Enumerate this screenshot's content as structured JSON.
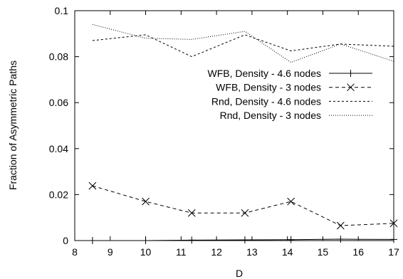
{
  "chart_data": {
    "type": "line",
    "xlabel": "D",
    "ylabel": "Fraction of Asymmetric Paths",
    "xlim": [
      8,
      17
    ],
    "ylim": [
      0,
      0.1
    ],
    "xticks": [
      8,
      9,
      10,
      11,
      12,
      13,
      14,
      15,
      16,
      17
    ],
    "yticks": [
      0,
      0.02,
      0.04,
      0.06,
      0.08,
      0.1
    ],
    "ytick_labels": [
      "0",
      "0.02",
      "0.04",
      "0.06",
      "0.08",
      "0.1"
    ],
    "legend_position": "center-right",
    "grid": false,
    "series": [
      {
        "name": "WFB, Density - 4.6 nodes",
        "style": "solid",
        "marker": "plus",
        "x": [
          8.5,
          10.0,
          11.3,
          12.8,
          14.1,
          15.5,
          17.0
        ],
        "y": [
          0.0,
          0.0,
          0.0002,
          0.0003,
          0.0004,
          0.0006,
          0.0005
        ]
      },
      {
        "name": "WFB, Density - 3 nodes",
        "style": "dashed",
        "marker": "cross",
        "x": [
          8.5,
          10.0,
          11.3,
          12.8,
          14.1,
          15.5,
          17.0
        ],
        "y": [
          0.0238,
          0.017,
          0.012,
          0.012,
          0.017,
          0.0065,
          0.0075
        ]
      },
      {
        "name": "Rnd, Density - 4.6 nodes",
        "style": "short-dashed",
        "marker": "none",
        "x": [
          8.5,
          10.0,
          11.3,
          12.8,
          14.1,
          15.5,
          17.0
        ],
        "y": [
          0.087,
          0.0895,
          0.08,
          0.0895,
          0.0825,
          0.0855,
          0.0845
        ]
      },
      {
        "name": "Rnd, Density - 3 nodes",
        "style": "dotted",
        "marker": "none",
        "x": [
          8.5,
          10.0,
          11.3,
          12.8,
          14.1,
          15.5,
          17.0
        ],
        "y": [
          0.094,
          0.088,
          0.0875,
          0.091,
          0.0775,
          0.0855,
          0.078
        ]
      }
    ]
  }
}
